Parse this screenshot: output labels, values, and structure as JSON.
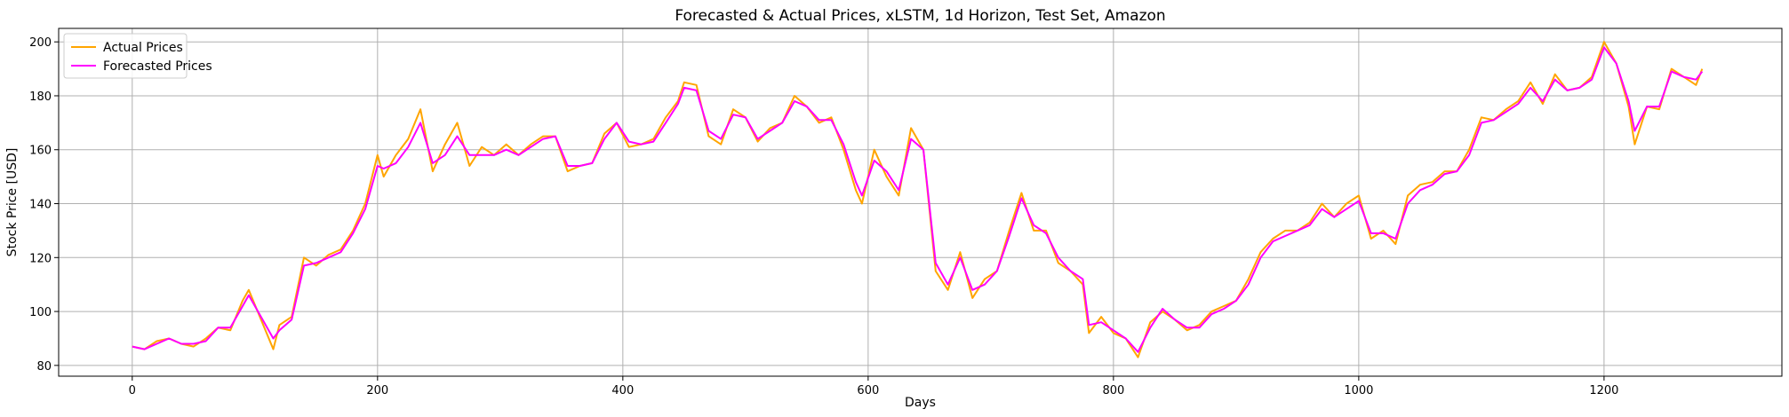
{
  "chart_data": {
    "type": "line",
    "title": "Forecasted & Actual Prices, xLSTM, 1d Horizon, Test Set, Amazon",
    "xlabel": "Days",
    "ylabel": "Stock Price [USD]",
    "xlim": [
      -60,
      1345
    ],
    "ylim": [
      76,
      205
    ],
    "xticks": [
      0,
      200,
      400,
      600,
      800,
      1000,
      1200
    ],
    "yticks": [
      80,
      100,
      120,
      140,
      160,
      180,
      200
    ],
    "grid": true,
    "legend_position": "top-left",
    "colors": {
      "actual": "#ffa500",
      "forecast": "#ff00ff"
    },
    "series": [
      {
        "name": "Actual Prices",
        "points": [
          [
            0,
            87
          ],
          [
            10,
            86
          ],
          [
            20,
            89
          ],
          [
            30,
            90
          ],
          [
            40,
            88
          ],
          [
            50,
            87
          ],
          [
            60,
            90
          ],
          [
            70,
            94
          ],
          [
            80,
            93
          ],
          [
            90,
            104
          ],
          [
            95,
            108
          ],
          [
            105,
            97
          ],
          [
            115,
            86
          ],
          [
            120,
            95
          ],
          [
            130,
            98
          ],
          [
            140,
            120
          ],
          [
            150,
            117
          ],
          [
            160,
            121
          ],
          [
            170,
            123
          ],
          [
            180,
            130
          ],
          [
            190,
            140
          ],
          [
            200,
            158
          ],
          [
            205,
            150
          ],
          [
            215,
            158
          ],
          [
            225,
            164
          ],
          [
            235,
            175
          ],
          [
            245,
            152
          ],
          [
            255,
            162
          ],
          [
            265,
            170
          ],
          [
            275,
            154
          ],
          [
            285,
            161
          ],
          [
            295,
            158
          ],
          [
            305,
            162
          ],
          [
            315,
            158
          ],
          [
            325,
            162
          ],
          [
            335,
            165
          ],
          [
            345,
            165
          ],
          [
            355,
            152
          ],
          [
            365,
            154
          ],
          [
            375,
            155
          ],
          [
            385,
            166
          ],
          [
            395,
            170
          ],
          [
            405,
            161
          ],
          [
            415,
            162
          ],
          [
            425,
            164
          ],
          [
            435,
            172
          ],
          [
            445,
            178
          ],
          [
            450,
            185
          ],
          [
            460,
            184
          ],
          [
            470,
            165
          ],
          [
            480,
            162
          ],
          [
            490,
            175
          ],
          [
            500,
            172
          ],
          [
            510,
            163
          ],
          [
            520,
            168
          ],
          [
            530,
            170
          ],
          [
            540,
            180
          ],
          [
            550,
            176
          ],
          [
            560,
            170
          ],
          [
            570,
            172
          ],
          [
            580,
            160
          ],
          [
            590,
            145
          ],
          [
            595,
            140
          ],
          [
            605,
            160
          ],
          [
            615,
            150
          ],
          [
            625,
            143
          ],
          [
            635,
            168
          ],
          [
            645,
            160
          ],
          [
            655,
            115
          ],
          [
            665,
            108
          ],
          [
            675,
            122
          ],
          [
            685,
            105
          ],
          [
            695,
            112
          ],
          [
            705,
            115
          ],
          [
            715,
            130
          ],
          [
            725,
            144
          ],
          [
            735,
            130
          ],
          [
            745,
            130
          ],
          [
            755,
            118
          ],
          [
            765,
            115
          ],
          [
            775,
            110
          ],
          [
            780,
            92
          ],
          [
            790,
            98
          ],
          [
            800,
            92
          ],
          [
            810,
            90
          ],
          [
            820,
            83
          ],
          [
            830,
            96
          ],
          [
            840,
            100
          ],
          [
            850,
            97
          ],
          [
            860,
            93
          ],
          [
            870,
            95
          ],
          [
            880,
            100
          ],
          [
            890,
            102
          ],
          [
            900,
            104
          ],
          [
            910,
            112
          ],
          [
            920,
            122
          ],
          [
            930,
            127
          ],
          [
            940,
            130
          ],
          [
            950,
            130
          ],
          [
            960,
            133
          ],
          [
            970,
            140
          ],
          [
            980,
            135
          ],
          [
            990,
            140
          ],
          [
            1000,
            143
          ],
          [
            1010,
            127
          ],
          [
            1020,
            130
          ],
          [
            1030,
            125
          ],
          [
            1040,
            143
          ],
          [
            1050,
            147
          ],
          [
            1060,
            148
          ],
          [
            1070,
            152
          ],
          [
            1080,
            152
          ],
          [
            1090,
            160
          ],
          [
            1100,
            172
          ],
          [
            1110,
            171
          ],
          [
            1120,
            175
          ],
          [
            1130,
            178
          ],
          [
            1140,
            185
          ],
          [
            1150,
            177
          ],
          [
            1160,
            188
          ],
          [
            1170,
            182
          ],
          [
            1180,
            183
          ],
          [
            1190,
            187
          ],
          [
            1200,
            200
          ],
          [
            1210,
            192
          ],
          [
            1220,
            176
          ],
          [
            1225,
            162
          ],
          [
            1235,
            176
          ],
          [
            1245,
            175
          ],
          [
            1255,
            190
          ],
          [
            1265,
            187
          ],
          [
            1275,
            184
          ],
          [
            1280,
            190
          ]
        ]
      },
      {
        "name": "Forecasted Prices",
        "points": [
          [
            0,
            87
          ],
          [
            10,
            86
          ],
          [
            20,
            88
          ],
          [
            30,
            90
          ],
          [
            40,
            88
          ],
          [
            50,
            88
          ],
          [
            60,
            89
          ],
          [
            70,
            94
          ],
          [
            80,
            94
          ],
          [
            90,
            102
          ],
          [
            95,
            106
          ],
          [
            105,
            98
          ],
          [
            115,
            90
          ],
          [
            120,
            93
          ],
          [
            130,
            97
          ],
          [
            140,
            117
          ],
          [
            150,
            118
          ],
          [
            160,
            120
          ],
          [
            170,
            122
          ],
          [
            180,
            129
          ],
          [
            190,
            138
          ],
          [
            200,
            154
          ],
          [
            205,
            153
          ],
          [
            215,
            155
          ],
          [
            225,
            161
          ],
          [
            235,
            170
          ],
          [
            245,
            155
          ],
          [
            255,
            158
          ],
          [
            265,
            165
          ],
          [
            275,
            158
          ],
          [
            285,
            158
          ],
          [
            295,
            158
          ],
          [
            305,
            160
          ],
          [
            315,
            158
          ],
          [
            325,
            161
          ],
          [
            335,
            164
          ],
          [
            345,
            165
          ],
          [
            355,
            154
          ],
          [
            365,
            154
          ],
          [
            375,
            155
          ],
          [
            385,
            164
          ],
          [
            395,
            170
          ],
          [
            405,
            163
          ],
          [
            415,
            162
          ],
          [
            425,
            163
          ],
          [
            435,
            170
          ],
          [
            445,
            177
          ],
          [
            450,
            183
          ],
          [
            460,
            182
          ],
          [
            470,
            167
          ],
          [
            480,
            164
          ],
          [
            490,
            173
          ],
          [
            500,
            172
          ],
          [
            510,
            164
          ],
          [
            520,
            167
          ],
          [
            530,
            170
          ],
          [
            540,
            178
          ],
          [
            550,
            176
          ],
          [
            560,
            171
          ],
          [
            570,
            171
          ],
          [
            580,
            162
          ],
          [
            590,
            148
          ],
          [
            595,
            143
          ],
          [
            605,
            156
          ],
          [
            615,
            152
          ],
          [
            625,
            145
          ],
          [
            635,
            164
          ],
          [
            645,
            160
          ],
          [
            655,
            118
          ],
          [
            665,
            110
          ],
          [
            675,
            120
          ],
          [
            685,
            108
          ],
          [
            695,
            110
          ],
          [
            705,
            115
          ],
          [
            715,
            128
          ],
          [
            725,
            142
          ],
          [
            735,
            132
          ],
          [
            745,
            129
          ],
          [
            755,
            120
          ],
          [
            765,
            115
          ],
          [
            775,
            112
          ],
          [
            780,
            95
          ],
          [
            790,
            96
          ],
          [
            800,
            93
          ],
          [
            810,
            90
          ],
          [
            820,
            85
          ],
          [
            830,
            94
          ],
          [
            840,
            101
          ],
          [
            850,
            97
          ],
          [
            860,
            94
          ],
          [
            870,
            94
          ],
          [
            880,
            99
          ],
          [
            890,
            101
          ],
          [
            900,
            104
          ],
          [
            910,
            110
          ],
          [
            920,
            120
          ],
          [
            930,
            126
          ],
          [
            940,
            128
          ],
          [
            950,
            130
          ],
          [
            960,
            132
          ],
          [
            970,
            138
          ],
          [
            980,
            135
          ],
          [
            990,
            138
          ],
          [
            1000,
            141
          ],
          [
            1010,
            129
          ],
          [
            1020,
            129
          ],
          [
            1030,
            127
          ],
          [
            1040,
            140
          ],
          [
            1050,
            145
          ],
          [
            1060,
            147
          ],
          [
            1070,
            151
          ],
          [
            1080,
            152
          ],
          [
            1090,
            158
          ],
          [
            1100,
            170
          ],
          [
            1110,
            171
          ],
          [
            1120,
            174
          ],
          [
            1130,
            177
          ],
          [
            1140,
            183
          ],
          [
            1150,
            178
          ],
          [
            1160,
            186
          ],
          [
            1170,
            182
          ],
          [
            1180,
            183
          ],
          [
            1190,
            186
          ],
          [
            1200,
            198
          ],
          [
            1210,
            192
          ],
          [
            1220,
            178
          ],
          [
            1225,
            167
          ],
          [
            1235,
            176
          ],
          [
            1245,
            176
          ],
          [
            1255,
            189
          ],
          [
            1265,
            187
          ],
          [
            1275,
            186
          ],
          [
            1280,
            189
          ]
        ]
      }
    ]
  }
}
